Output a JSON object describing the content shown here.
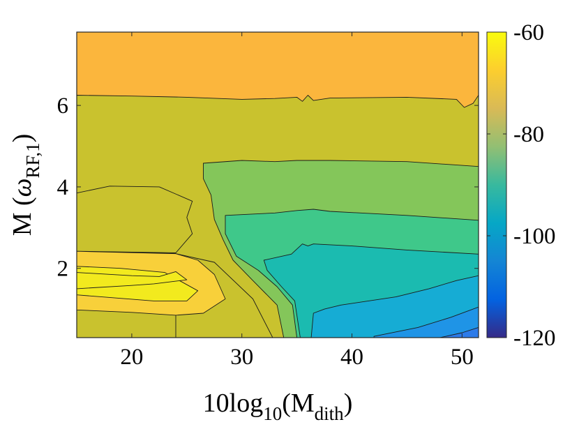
{
  "chart_data": {
    "type": "contour",
    "xlabel": {
      "base": "10log",
      "sub1": "10",
      "mid": "(M",
      "sub2": "dith",
      "end": ")"
    },
    "ylabel": {
      "base": "M (",
      "greek": "ω",
      "sub": "RF,1",
      "end": ")"
    },
    "xlim": [
      15,
      51.5
    ],
    "ylim": [
      0.3,
      7.8
    ],
    "xticks": [
      20,
      30,
      40,
      50
    ],
    "xtick_labels": [
      "20",
      "30",
      "40",
      "50"
    ],
    "yticks": [
      2,
      4,
      6
    ],
    "ytick_labels": [
      "2",
      "4",
      "6"
    ],
    "colorbar": {
      "range": [
        -120,
        -60
      ],
      "ticks": [
        -60,
        -80,
        -100,
        -120
      ],
      "tick_labels": [
        "-60",
        "-80",
        "-100",
        "-120"
      ],
      "colormap": "parula",
      "colors": [
        "#352a87",
        "#0363e1",
        "#1485d4",
        "#06a7c6",
        "#38b99e",
        "#92bf73",
        "#d9ba56",
        "#fcce2e",
        "#f9fb0e"
      ]
    },
    "levels": [
      {
        "name": "-65",
        "color": "#f2ea1e"
      },
      {
        "name": "-70",
        "color": "#f8d03a"
      },
      {
        "name": "-75",
        "color": "#fbb63d"
      },
      {
        "name": "-80",
        "color": "#c9c22e"
      },
      {
        "name": "-85",
        "color": "#84c65a"
      },
      {
        "name": "-90",
        "color": "#3fc88a"
      },
      {
        "name": "-95",
        "color": "#1bbbb0"
      },
      {
        "name": "-100",
        "color": "#16acd4"
      },
      {
        "name": "-105",
        "color": "#1f94e6"
      },
      {
        "name": "-110",
        "color": "#2d7be9"
      }
    ],
    "regions": [
      {
        "level": "-75",
        "points": [
          [
            15,
            7.8
          ],
          [
            51.5,
            7.8
          ],
          [
            51.5,
            0.3
          ],
          [
            15,
            0.3
          ]
        ]
      },
      {
        "level": "-80",
        "points": [
          [
            15,
            6.25
          ],
          [
            20,
            6.23
          ],
          [
            25,
            6.2
          ],
          [
            30,
            6.15
          ],
          [
            33,
            6.17
          ],
          [
            35,
            6.2
          ],
          [
            35.5,
            6.1
          ],
          [
            36,
            6.25
          ],
          [
            36.5,
            6.12
          ],
          [
            38,
            6.18
          ],
          [
            45,
            6.2
          ],
          [
            49.5,
            6.15
          ],
          [
            50.2,
            5.95
          ],
          [
            51,
            6.05
          ],
          [
            51.5,
            6.25
          ],
          [
            51.5,
            0.3
          ],
          [
            15,
            0.3
          ],
          [
            15,
            2.42
          ],
          [
            24,
            2.36
          ],
          [
            27.5,
            2.15
          ],
          [
            31,
            1.25
          ],
          [
            32.8,
            0.3
          ],
          [
            24,
            0.3
          ],
          [
            24,
            0.85
          ],
          [
            23,
            0.98
          ],
          [
            18,
            1.08
          ],
          [
            15,
            1.16
          ],
          [
            15,
            3.85
          ],
          [
            18,
            4.02
          ],
          [
            22.5,
            4.0
          ],
          [
            25.5,
            3.65
          ],
          [
            25,
            3.25
          ],
          [
            25.5,
            2.85
          ],
          [
            24,
            2.38
          ],
          [
            15,
            2.42
          ]
        ]
      },
      {
        "level": "-85",
        "points": [
          [
            26.5,
            4.58
          ],
          [
            30,
            4.65
          ],
          [
            33,
            4.62
          ],
          [
            35,
            4.65
          ],
          [
            36.5,
            4.65
          ],
          [
            38,
            4.65
          ],
          [
            45,
            4.62
          ],
          [
            51.5,
            4.5
          ],
          [
            51.5,
            0.3
          ],
          [
            33.8,
            0.3
          ],
          [
            33.2,
            1.1
          ],
          [
            31,
            1.7
          ],
          [
            29.2,
            2.2
          ],
          [
            28.3,
            2.7
          ],
          [
            27.5,
            3.2
          ],
          [
            27.2,
            3.8
          ],
          [
            26.5,
            4.2
          ],
          [
            26.5,
            4.58
          ]
        ]
      },
      {
        "level": "-90",
        "points": [
          [
            28.5,
            3.3
          ],
          [
            33,
            3.36
          ],
          [
            35,
            3.42
          ],
          [
            36.5,
            3.45
          ],
          [
            38,
            3.4
          ],
          [
            45,
            3.3
          ],
          [
            51.5,
            3.18
          ],
          [
            51.5,
            0.3
          ],
          [
            35,
            0.3
          ],
          [
            34.6,
            1.1
          ],
          [
            33.2,
            1.55
          ],
          [
            31.5,
            1.95
          ],
          [
            29.5,
            2.3
          ],
          [
            28.5,
            2.85
          ],
          [
            28.5,
            3.3
          ]
        ]
      },
      {
        "level": "-95",
        "points": [
          [
            32,
            2.2
          ],
          [
            34.5,
            2.35
          ],
          [
            35.5,
            2.6
          ],
          [
            36,
            2.55
          ],
          [
            36.5,
            2.6
          ],
          [
            40,
            2.55
          ],
          [
            45,
            2.45
          ],
          [
            51.5,
            2.35
          ],
          [
            51.5,
            0.3
          ],
          [
            35.3,
            0.3
          ],
          [
            34.8,
            1.2
          ],
          [
            33.6,
            1.55
          ],
          [
            32.3,
            1.95
          ],
          [
            32,
            2.2
          ]
        ]
      },
      {
        "level": "-100",
        "points": [
          [
            36.5,
            0.9
          ],
          [
            37.5,
            1.0
          ],
          [
            39,
            1.1
          ],
          [
            44,
            1.3
          ],
          [
            47,
            1.5
          ],
          [
            49.5,
            1.7
          ],
          [
            51.5,
            1.82
          ],
          [
            51.5,
            0.3
          ],
          [
            36.3,
            0.3
          ],
          [
            36.5,
            0.9
          ]
        ]
      },
      {
        "level": "-105",
        "points": [
          [
            42,
            0.33
          ],
          [
            46,
            0.55
          ],
          [
            49,
            0.8
          ],
          [
            51.5,
            1.05
          ],
          [
            51.5,
            0.3
          ],
          [
            42,
            0.3
          ]
        ]
      },
      {
        "level": "-110",
        "points": [
          [
            48,
            0.3
          ],
          [
            50,
            0.42
          ],
          [
            51.5,
            0.55
          ],
          [
            51.5,
            0.3
          ]
        ]
      },
      {
        "level": "-70",
        "points": [
          [
            15,
            2.42
          ],
          [
            24,
            2.36
          ],
          [
            26,
            2.2
          ],
          [
            27.5,
            1.85
          ],
          [
            28.5,
            1.25
          ],
          [
            26.5,
            0.9
          ],
          [
            24,
            0.85
          ],
          [
            20,
            0.92
          ],
          [
            15,
            0.98
          ]
        ]
      },
      {
        "level": "-65",
        "points": [
          [
            15,
            2.05
          ],
          [
            19,
            2.0
          ],
          [
            23,
            1.9
          ],
          [
            26,
            1.45
          ],
          [
            25,
            1.2
          ],
          [
            22,
            1.2
          ],
          [
            15,
            1.35
          ]
        ]
      },
      {
        "level": "-65",
        "points": [
          [
            15,
            1.9
          ],
          [
            20,
            1.82
          ],
          [
            22.5,
            1.8
          ],
          [
            24,
            1.92
          ],
          [
            25,
            1.72
          ],
          [
            22,
            1.62
          ],
          [
            20,
            1.58
          ],
          [
            15,
            1.5
          ]
        ]
      }
    ]
  }
}
